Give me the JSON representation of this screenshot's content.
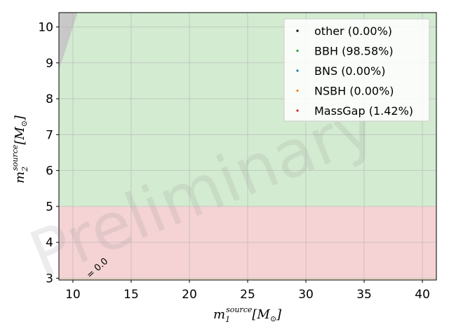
{
  "chart_data": {
    "type": "scatter",
    "title": "",
    "xlabel": "m_1^{source}[M_⊙]",
    "ylabel": "m_2^{source}[M_⊙]",
    "xlabel_parts": {
      "main": "m",
      "sub": "1",
      "sup": "source",
      "unit": "[M",
      "unit_sub": "⊙",
      "unit_close": "]"
    },
    "ylabel_parts": {
      "main": "m",
      "sub": "2",
      "sup": "source",
      "unit": "[M",
      "unit_sub": "⊙",
      "unit_close": "]"
    },
    "xlim": [
      8.8,
      41.2
    ],
    "ylim": [
      2.95,
      10.4
    ],
    "xticks": [
      10,
      15,
      20,
      25,
      30,
      35,
      40
    ],
    "yticks": [
      3,
      4,
      5,
      6,
      7,
      8,
      9,
      10
    ],
    "grid": true,
    "legend_placement": "top-right",
    "regions": [
      {
        "name": "bbh-region",
        "y_from": 5,
        "y_to": 10.4,
        "color": "#d3ebd1"
      },
      {
        "name": "massgap-region",
        "y_from": 3,
        "y_to": 5,
        "color": "#f5d3d4"
      },
      {
        "name": "ns-region",
        "y_from": 2.95,
        "y_to": 3,
        "color": "#f7e1cf"
      }
    ],
    "excluded_region_color": "#c8c8c8",
    "boundary_label": "= 0.0",
    "watermark": "Preliminary",
    "series": [
      {
        "name": "other (0.00%)",
        "color": "#000000",
        "points": []
      },
      {
        "name": "BBH (98.58%)",
        "color": "#2ca02c",
        "band": {
          "constant": 90,
          "exponent": 1.9,
          "y_min": 5.0,
          "y_max": 9.8,
          "count": 1600,
          "band_width": 0.32
        }
      },
      {
        "name": "BNS (0.00%)",
        "color": "#1f77b4",
        "points": []
      },
      {
        "name": "NSBH (0.00%)",
        "color": "#ff7f0e",
        "points": []
      },
      {
        "name": "MassGap (1.42%)",
        "color": "#d62728",
        "band": {
          "constant": 90,
          "exponent": 1.9,
          "y_min": 3.1,
          "y_max": 5.0,
          "count": 210,
          "band_width": 0.14
        }
      }
    ]
  }
}
